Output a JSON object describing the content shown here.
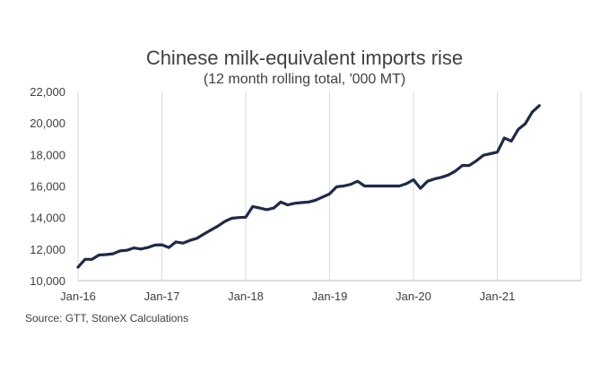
{
  "chart_data": {
    "type": "line",
    "title": "Chinese milk-equivalent imports rise",
    "subtitle": "(12 month rolling total, '000 MT)",
    "source": "Source: GTT, StoneX Calculations",
    "xlabel": "",
    "ylabel": "",
    "ylim": [
      10000,
      22000
    ],
    "grid": "vertical",
    "line_color": "#1f2a4a",
    "y_ticks": [
      10000,
      12000,
      14000,
      16000,
      18000,
      20000,
      22000
    ],
    "y_tick_labels": [
      "10,000",
      "12,000",
      "14,000",
      "16,000",
      "18,000",
      "20,000",
      "22,000"
    ],
    "x_ticks": [
      0,
      12,
      24,
      36,
      48,
      60
    ],
    "x_tick_labels": [
      "Jan-16",
      "Jan-17",
      "Jan-18",
      "Jan-19",
      "Jan-20",
      "Jan-21"
    ],
    "x_range": [
      0,
      72
    ],
    "series": [
      {
        "name": "12 month rolling total",
        "x": [
          0,
          1,
          2,
          3,
          4,
          5,
          6,
          7,
          8,
          9,
          10,
          11,
          12,
          13,
          14,
          15,
          16,
          17,
          18,
          19,
          20,
          21,
          22,
          23,
          24,
          25,
          26,
          27,
          28,
          29,
          30,
          31,
          32,
          33,
          34,
          35,
          36,
          37,
          38,
          39,
          40,
          41,
          42,
          43,
          44,
          45,
          46,
          47,
          48,
          49,
          50,
          51,
          52,
          53,
          54,
          55,
          56,
          57,
          58,
          59,
          60,
          61,
          62,
          63,
          64,
          65,
          66
        ],
        "values": [
          10850,
          11350,
          11350,
          11620,
          11650,
          11700,
          11880,
          11920,
          12070,
          12000,
          12100,
          12250,
          12270,
          12100,
          12450,
          12380,
          12550,
          12680,
          12950,
          13200,
          13450,
          13750,
          13950,
          14000,
          14020,
          14700,
          14600,
          14500,
          14600,
          14980,
          14800,
          14900,
          14950,
          14980,
          15100,
          15300,
          15500,
          15950,
          16000,
          16100,
          16300,
          16000,
          16000,
          16000,
          16000,
          16000,
          16000,
          16150,
          16400,
          15850,
          16300,
          16450,
          16550,
          16700,
          16950,
          17300,
          17300,
          17600,
          17950,
          18050,
          18150,
          19050,
          18850,
          19600,
          19950,
          20700,
          21100
        ]
      }
    ]
  }
}
